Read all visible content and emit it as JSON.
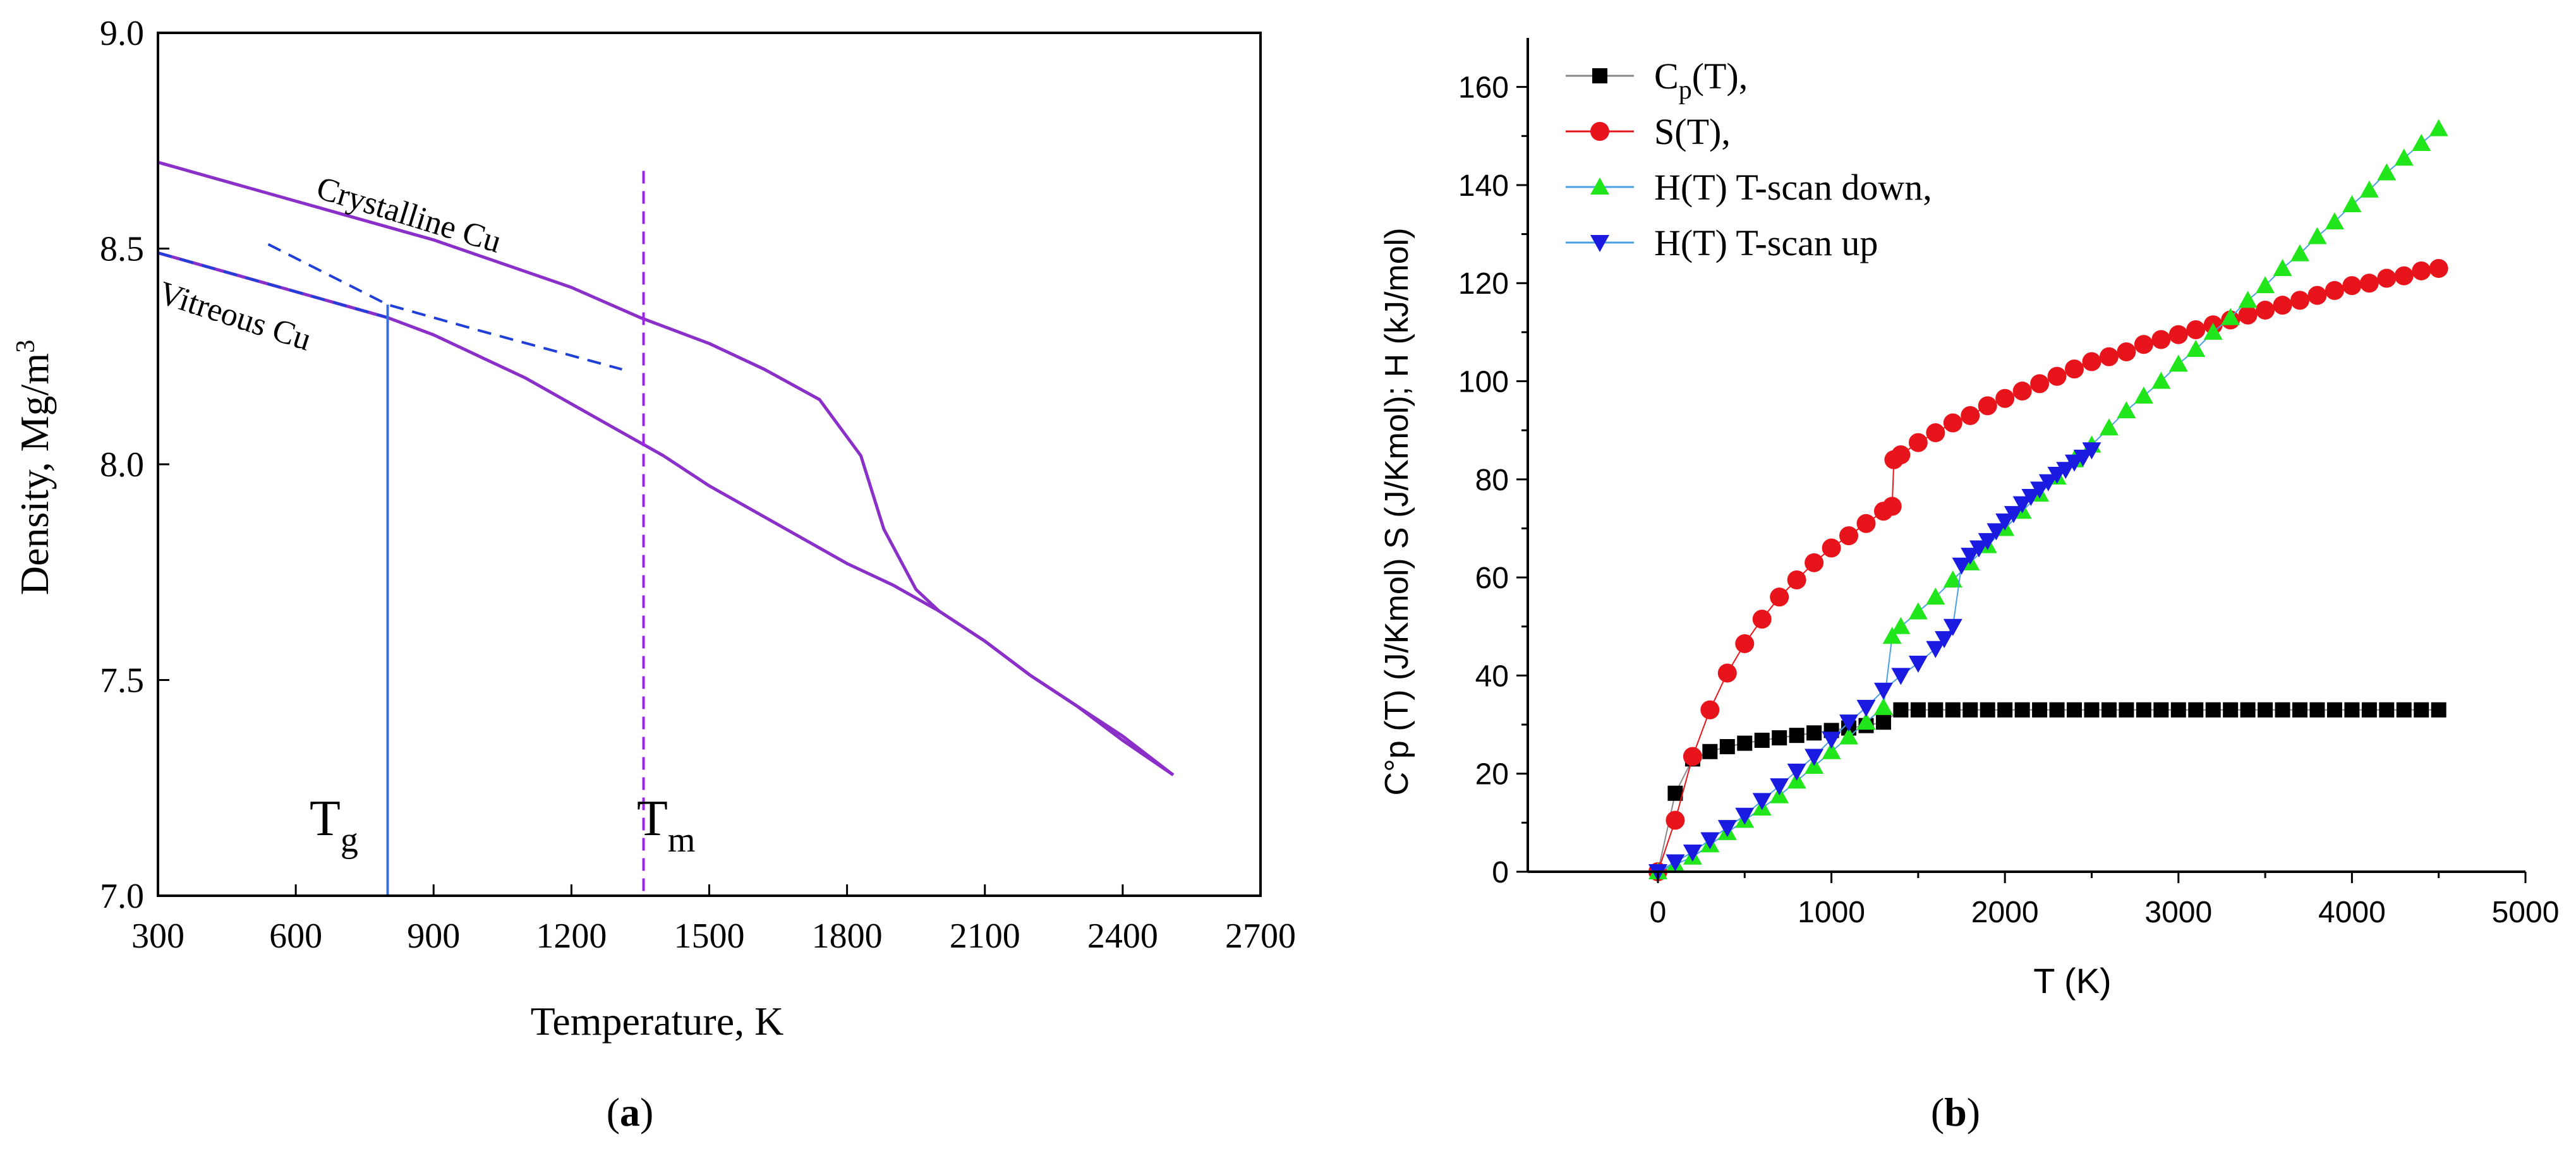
{
  "chart_data": [
    {
      "panel": "(a)",
      "panel_letter": "a",
      "type": "line",
      "xlabel": "Temperature, K",
      "ylabel": "Density, Mg/m",
      "ylabel_sup": "3",
      "xlim": [
        300,
        2700
      ],
      "ylim": [
        7.0,
        9.0
      ],
      "xticks": [
        300,
        600,
        900,
        1200,
        1500,
        1800,
        2100,
        2400,
        2700
      ],
      "yticks": [
        7.0,
        7.5,
        8.0,
        8.5,
        9.0
      ],
      "xtick_labels": [
        "300",
        "600",
        "900",
        "1200",
        "1500",
        "1800",
        "2100",
        "2400",
        "2700"
      ],
      "ytick_labels": [
        "7.0",
        "7.5",
        "8.0",
        "8.5",
        "9.0"
      ],
      "colors": {
        "curve": "#8b2fc9",
        "tg_line": "#3a6fd8",
        "fit": "#1f3fd8",
        "tm_line": "#a020f0"
      },
      "series": [
        {
          "name": "Crystalline Cu",
          "x": [
            300,
            600,
            900,
            1200,
            1350,
            1500,
            1620,
            1740,
            1830,
            1880,
            1950,
            2000,
            2100,
            2200,
            2300,
            2400,
            2510
          ],
          "y": [
            8.7,
            8.61,
            8.52,
            8.41,
            8.34,
            8.28,
            8.22,
            8.15,
            8.02,
            7.85,
            7.71,
            7.66,
            7.59,
            7.51,
            7.44,
            7.36,
            7.28
          ]
        },
        {
          "name": "Vitreous Cu",
          "x": [
            300,
            500,
            700,
            800,
            900,
            1000,
            1100,
            1200,
            1300,
            1400,
            1500,
            1600,
            1700,
            1800,
            1900,
            2000,
            2100,
            2200,
            2300,
            2400,
            2510
          ],
          "y": [
            8.49,
            8.43,
            8.37,
            8.34,
            8.3,
            8.25,
            8.2,
            8.14,
            8.08,
            8.02,
            7.95,
            7.89,
            7.83,
            7.77,
            7.72,
            7.66,
            7.59,
            7.51,
            7.44,
            7.37,
            7.28
          ]
        }
      ],
      "fit_lines": [
        {
          "x": [
            300,
            800
          ],
          "y": [
            8.49,
            8.34
          ]
        },
        {
          "x": [
            540,
            800,
            1000,
            1310
          ],
          "y": [
            8.51,
            8.37,
            8.31,
            8.22
          ]
        }
      ],
      "vertical_lines": [
        {
          "label": "T",
          "label_sub": "g",
          "x": 800,
          "style": "solid"
        },
        {
          "label": "T",
          "label_sub": "m",
          "x": 1357,
          "style": "dashed"
        }
      ],
      "annotations": [
        "Crystalline Cu",
        "Vitreous Cu"
      ],
      "grid": false
    },
    {
      "panel": "(b)",
      "panel_letter": "b",
      "type": "scatter",
      "xlabel": "T (K)",
      "ylabel": "C°p (T) (J/Kmol) S (J/Kmol); H (kJ/mol)",
      "xlim": [
        -750,
        5000
      ],
      "ylim": [
        0,
        170
      ],
      "xticks": [
        0,
        1000,
        2000,
        3000,
        4000,
        5000
      ],
      "yticks": [
        0,
        20,
        40,
        60,
        80,
        100,
        120,
        140,
        160
      ],
      "xtick_labels": [
        "0",
        "1000",
        "2000",
        "3000",
        "4000",
        "5000"
      ],
      "ytick_labels": [
        "0",
        "20",
        "40",
        "60",
        "80",
        "100",
        "120",
        "140",
        "160"
      ],
      "grid": false,
      "legend_position": "top-left",
      "series": [
        {
          "name": "Cp(T),",
          "legend_main": "C",
          "legend_sub": "p",
          "legend_rest": "(T),",
          "marker": "square",
          "color": "#000000",
          "line_color": "#888888",
          "x": [
            0,
            100,
            200,
            300,
            400,
            500,
            600,
            700,
            800,
            900,
            1000,
            1100,
            1200,
            1300,
            1400,
            1500,
            1600,
            1700,
            1800,
            1900,
            2000,
            2100,
            2200,
            2300,
            2400,
            2500,
            2600,
            2700,
            2800,
            2900,
            3000,
            3100,
            3200,
            3300,
            3400,
            3500,
            3600,
            3700,
            3800,
            3900,
            4000,
            4100,
            4200,
            4300,
            4400,
            4500
          ],
          "y": [
            0,
            16,
            23,
            24.5,
            25.5,
            26.2,
            26.8,
            27.3,
            27.8,
            28.3,
            28.8,
            29.3,
            29.8,
            30.5,
            33,
            33,
            33,
            33,
            33,
            33,
            33,
            33,
            33,
            33,
            33,
            33,
            33,
            33,
            33,
            33,
            33,
            33,
            33,
            33,
            33,
            33,
            33,
            33,
            33,
            33,
            33,
            33,
            33,
            33,
            33,
            33
          ]
        },
        {
          "name": "S(T),",
          "legend_main": "S(T),",
          "marker": "circle",
          "color": "#e8141b",
          "line_color": "#e8141b",
          "x": [
            0,
            100,
            200,
            300,
            400,
            500,
            600,
            700,
            800,
            900,
            1000,
            1100,
            1200,
            1300,
            1350,
            1360,
            1400,
            1500,
            1600,
            1700,
            1800,
            1900,
            2000,
            2100,
            2200,
            2300,
            2400,
            2500,
            2600,
            2700,
            2800,
            2900,
            3000,
            3100,
            3200,
            3300,
            3400,
            3500,
            3600,
            3700,
            3800,
            3900,
            4000,
            4100,
            4200,
            4300,
            4400,
            4500
          ],
          "y": [
            0,
            10.5,
            23.5,
            33,
            40.5,
            46.5,
            51.5,
            56,
            59.5,
            63,
            66,
            68.5,
            71,
            73.5,
            74.5,
            84,
            85,
            87.5,
            89.5,
            91.5,
            93,
            95,
            96.5,
            98,
            99.5,
            101,
            102.5,
            104,
            105,
            106,
            107.5,
            108.5,
            109.5,
            110.5,
            111.5,
            112.5,
            113.5,
            114.5,
            115.5,
            116.5,
            117.5,
            118.5,
            119.5,
            120,
            121,
            121.5,
            122.5,
            123
          ]
        },
        {
          "name": "H(T) T-scan down,",
          "legend_main": "H(T) T-scan down,",
          "marker": "triangle-up",
          "color": "#22e61c",
          "line_color": "#4aa0e0",
          "x": [
            0,
            100,
            200,
            300,
            400,
            500,
            600,
            700,
            800,
            900,
            1000,
            1100,
            1200,
            1300,
            1350,
            1400,
            1500,
            1600,
            1700,
            1800,
            1900,
            2000,
            2100,
            2200,
            2300,
            2400,
            2500,
            2600,
            2700,
            2800,
            2900,
            3000,
            3100,
            3200,
            3300,
            3400,
            3500,
            3600,
            3700,
            3800,
            3900,
            4000,
            4100,
            4200,
            4300,
            4400,
            4500
          ],
          "y": [
            0,
            1.5,
            3,
            5.5,
            8,
            10.5,
            13,
            15.5,
            18.5,
            21.5,
            24.5,
            27.5,
            30.5,
            33.5,
            48,
            50,
            53,
            56,
            59.5,
            63,
            66.5,
            70,
            73.5,
            77,
            80.5,
            84,
            87,
            90.5,
            94,
            97,
            100,
            103.5,
            106.5,
            110,
            113,
            116.5,
            119.5,
            123,
            126,
            129.5,
            132.5,
            136,
            139,
            142.5,
            145.5,
            148.5,
            151.5
          ]
        },
        {
          "name": "H(T) T-scan up",
          "legend_main": "H(T) T-scan up",
          "marker": "triangle-down",
          "color": "#1a1ae0",
          "line_color": "#4aa0e0",
          "x": [
            0,
            100,
            200,
            300,
            400,
            500,
            600,
            700,
            800,
            900,
            1000,
            1100,
            1200,
            1300,
            1400,
            1500,
            1600,
            1650,
            1700,
            1750,
            1800,
            1850,
            1900,
            1950,
            2000,
            2050,
            2100,
            2150,
            2200,
            2250,
            2300,
            2350,
            2400,
            2450,
            2500
          ],
          "y": [
            0,
            2,
            4,
            6.5,
            9,
            11.5,
            14.5,
            17.5,
            20.5,
            23.5,
            27,
            30.5,
            33.5,
            37,
            40,
            42.5,
            45.5,
            47.5,
            50,
            62.5,
            64.5,
            66,
            67.5,
            69.5,
            71.5,
            73,
            75,
            76.5,
            78,
            79.5,
            81,
            82,
            83.5,
            84.5,
            86
          ]
        }
      ]
    }
  ]
}
